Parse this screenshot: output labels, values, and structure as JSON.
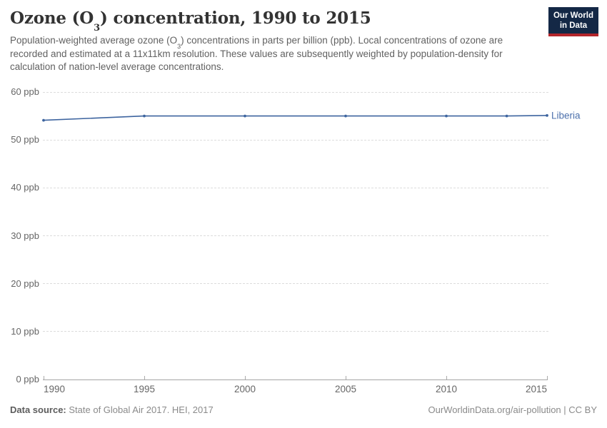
{
  "header": {
    "title_pre": "Ozone (O",
    "title_sub": "3",
    "title_post": ") concentration, 1990 to 2015",
    "subtitle_pre": "Population-weighted average ozone (O",
    "subtitle_sub": "3",
    "subtitle_post": ") concentrations in parts per billion (ppb). Local concentrations of ozone are recorded and estimated at a 11x11km resolution. These values are subsequently weighted by population-density for calculation of nation-level average concentrations.",
    "logo": {
      "line1": "Our World",
      "line2": "in Data",
      "bg_color": "#142846",
      "accent_color": "#b3252b"
    }
  },
  "chart_data": {
    "type": "line",
    "title": "Ozone (O3) concentration, 1990 to 2015",
    "unit": "ppb",
    "xlim": [
      1990,
      2015
    ],
    "ylim": [
      0,
      60
    ],
    "grid": "horizontal-dashed",
    "legend_position": "end-of-line-label",
    "x_ticks": [
      1990,
      1995,
      2000,
      2005,
      2010,
      2015
    ],
    "y_ticks": [
      {
        "value": 0,
        "label": "0 ppb"
      },
      {
        "value": 10,
        "label": "10 ppb"
      },
      {
        "value": 20,
        "label": "20 ppb"
      },
      {
        "value": 30,
        "label": "30 ppb"
      },
      {
        "value": 40,
        "label": "40 ppb"
      },
      {
        "value": 50,
        "label": "50 ppb"
      },
      {
        "value": 60,
        "label": "60 ppb"
      }
    ],
    "series": [
      {
        "name": "Liberia",
        "color": "#3d649f",
        "label_color": "#4c70ac",
        "x": [
          1990,
          1995,
          2000,
          2005,
          2010,
          2013,
          2015
        ],
        "values": [
          54.1,
          55.0,
          55.0,
          55.0,
          55.0,
          55.0,
          55.1
        ]
      }
    ]
  },
  "footer": {
    "datasource_label": "Data source:",
    "datasource_value": "State of Global Air 2017. HEI, 2017",
    "credit": "OurWorldinData.org/air-pollution | CC BY"
  }
}
